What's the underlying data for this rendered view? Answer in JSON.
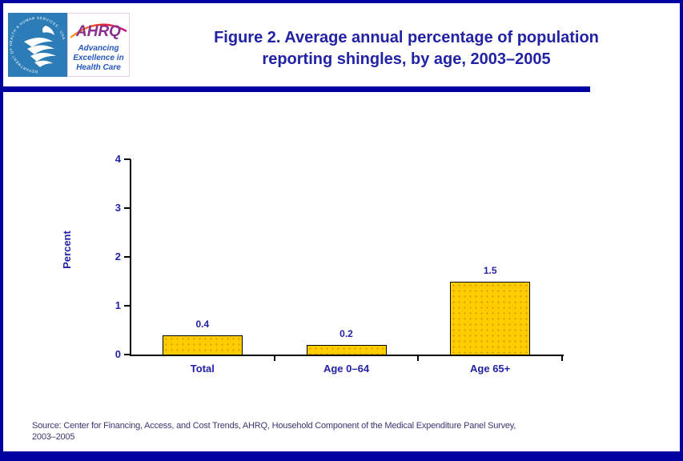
{
  "page": {
    "title_line1": "Figure 2. Average annual percentage of population",
    "title_line2": "reporting shingles, by age, 2003–2005"
  },
  "logo": {
    "hhs_ring_text": "DEPARTMENT OF HEALTH & HUMAN SERVICES · USA",
    "ahrq_acronym": "AHRQ",
    "ahrq_tagline_line1": "Advancing",
    "ahrq_tagline_line2": "Excellence in",
    "ahrq_tagline_line3": "Health Care"
  },
  "icons": {
    "hhs_logo": "hhs-eagle-seal",
    "ahrq_arc": "ahrq-rainbow-arc"
  },
  "chart_data": {
    "type": "bar",
    "title": "",
    "categories": [
      "Total",
      "Age 0–64",
      "Age 65+"
    ],
    "values": [
      0.4,
      0.2,
      1.5
    ],
    "value_labels": [
      "0.4",
      "0.2",
      "1.5"
    ],
    "xlabel": "",
    "ylabel": "Percent",
    "ylim": [
      0,
      4
    ],
    "yticks": [
      0,
      1,
      2,
      3,
      4
    ],
    "grid": false,
    "legend": false,
    "bar_color": "#FFCC00",
    "bar_border_color": "#000000",
    "label_color": "#2222A4"
  },
  "footer": {
    "source_lines": [
      "Source: Center for Financing, Access, and Cost Trends, AHRQ, Household Component of the Medical Expenditure Panel Survey,",
      "2003–2005"
    ]
  },
  "colors": {
    "accent_navy": "#0000A0",
    "text_navy": "#2222A4",
    "hhs_blue": "#2C7CB8",
    "ahrq_purple": "#8A2E8F",
    "tagline_blue": "#2457BD",
    "bar_gold": "#FFCC00"
  }
}
